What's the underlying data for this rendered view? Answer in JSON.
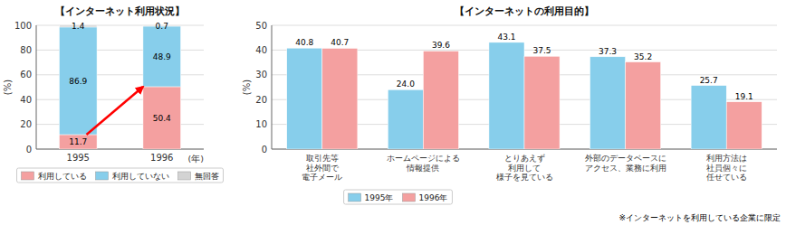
{
  "chart_data": [
    {
      "type": "bar",
      "stacked": true,
      "title": "【インターネット利用状況】",
      "y_label": "(%)",
      "x_label": "(年)",
      "categories": [
        "1995",
        "1996"
      ],
      "series": [
        {
          "name": "利用している",
          "color": "#f4a0a0",
          "values": [
            11.7,
            50.4
          ]
        },
        {
          "name": "利用していない",
          "color": "#87ceeb",
          "values": [
            86.9,
            48.9
          ]
        },
        {
          "name": "無回答",
          "color": "#d3d3d3",
          "values": [
            1.4,
            0.7
          ]
        }
      ],
      "ylim": [
        0,
        100
      ],
      "yticks": [
        0,
        20,
        40,
        60,
        80,
        100
      ],
      "grid": true,
      "data_labels": true,
      "legend": "bottom"
    },
    {
      "type": "bar",
      "title": "【インターネットの利用目的】",
      "y_label": "(%)",
      "note": "※インターネットを利用している企業に限定",
      "categories": [
        "取引先等\n社外間で\n電子メール",
        "ホームページによる\n情報提供",
        "とりあえず\n利用して\n様子を見ている",
        "外部のデータベースに\nアクセス、業務に利用",
        "利用方法は\n社員個々に\n任せている"
      ],
      "series": [
        {
          "name": "1995年",
          "color": "#87ceeb",
          "values": [
            40.8,
            24.0,
            43.1,
            37.3,
            25.7
          ],
          "value_labels": [
            "40.8",
            "24.0",
            "43.1",
            "37.3",
            "25.7"
          ]
        },
        {
          "name": "1996年",
          "color": "#f4a0a0",
          "values": [
            40.7,
            39.6,
            37.5,
            35.2,
            19.1
          ]
        }
      ],
      "ylim": [
        0,
        50
      ],
      "yticks": [
        0,
        10,
        20,
        30,
        40,
        50
      ],
      "grid": true,
      "data_labels": true,
      "legend": "bottom"
    }
  ]
}
